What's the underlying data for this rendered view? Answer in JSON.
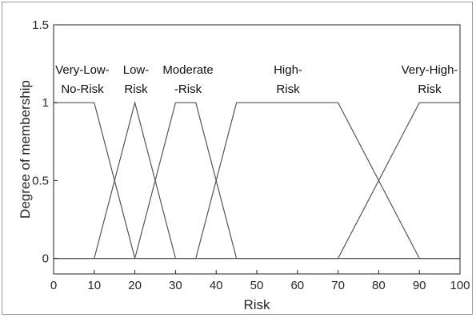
{
  "chart_data": {
    "type": "line",
    "title": "",
    "xlabel": "Risk",
    "ylabel": "Degree of membership",
    "xlim": [
      0,
      100
    ],
    "ylim": [
      -0.1,
      1.5
    ],
    "x_ticks": [
      "0",
      "10",
      "20",
      "30",
      "40",
      "50",
      "60",
      "70",
      "80",
      "90",
      "100"
    ],
    "y_ticks": [
      "0",
      "0.5",
      "1",
      "1.5"
    ],
    "grid": false,
    "line_color": "#555555",
    "series": [
      {
        "name": "Very-Low-No-Risk",
        "label_lines": [
          "Very-Low-",
          "No-Risk"
        ],
        "points": [
          [
            0,
            1
          ],
          [
            10,
            1
          ],
          [
            20,
            0
          ],
          [
            100,
            0
          ]
        ]
      },
      {
        "name": "Low-Risk",
        "label_lines": [
          "Low-",
          "Risk"
        ],
        "points": [
          [
            0,
            0
          ],
          [
            10,
            0
          ],
          [
            20,
            1
          ],
          [
            30,
            0
          ],
          [
            100,
            0
          ]
        ]
      },
      {
        "name": "Moderate-Risk",
        "label_lines": [
          "Moderate",
          "-Risk"
        ],
        "points": [
          [
            0,
            0
          ],
          [
            20,
            0
          ],
          [
            30,
            1
          ],
          [
            35,
            1
          ],
          [
            45,
            0
          ],
          [
            100,
            0
          ]
        ]
      },
      {
        "name": "High-Risk",
        "label_lines": [
          "High-",
          "Risk"
        ],
        "points": [
          [
            0,
            0
          ],
          [
            35,
            0
          ],
          [
            45,
            1
          ],
          [
            70,
            1
          ],
          [
            90,
            0
          ],
          [
            100,
            0
          ]
        ]
      },
      {
        "name": "Very-High-Risk",
        "label_lines": [
          "Very-High-",
          "Risk"
        ],
        "points": [
          [
            0,
            0
          ],
          [
            70,
            0
          ],
          [
            90,
            1
          ],
          [
            100,
            1
          ]
        ]
      }
    ]
  }
}
